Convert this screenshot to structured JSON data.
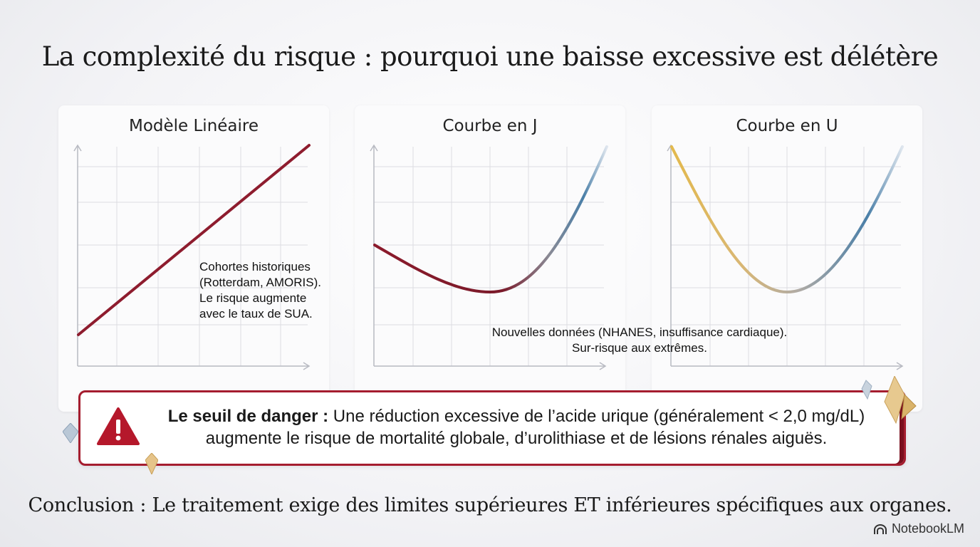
{
  "title": "La complexité du risque : pourquoi une baisse excessive est délétère",
  "panels": [
    {
      "title": "Modèle Linéaire",
      "note": [
        "Cohortes historiques",
        "(Rotterdam, AMORIS).",
        "Le risque augmente",
        "avec le taux de SUA."
      ]
    },
    {
      "title": "Courbe en J",
      "note": [
        "Nouvelles données (NHANES, insuffisance cardiaque).",
        "Sur-risque aux extrêmes."
      ]
    },
    {
      "title": "Courbe en U"
    }
  ],
  "danger": {
    "label": "Le seuil de danger :",
    "line1": " Une réduction excessive de l’acide urique (généralement < 2,0 mg/dL)",
    "line2": "augmente le risque de mortalité globale, d’urolithiase et de lésions rénales aiguës."
  },
  "conclusion": "Conclusion : Le traitement exige des limites supérieures ET inférieures spécifiques aux organes.",
  "brand": "NotebookLM",
  "colors": {
    "accent": "#a51d2f",
    "red_curve": "#8b1a2b",
    "blue_curve": "#4a7fa8",
    "gold_curve": "#d4b36a"
  }
}
